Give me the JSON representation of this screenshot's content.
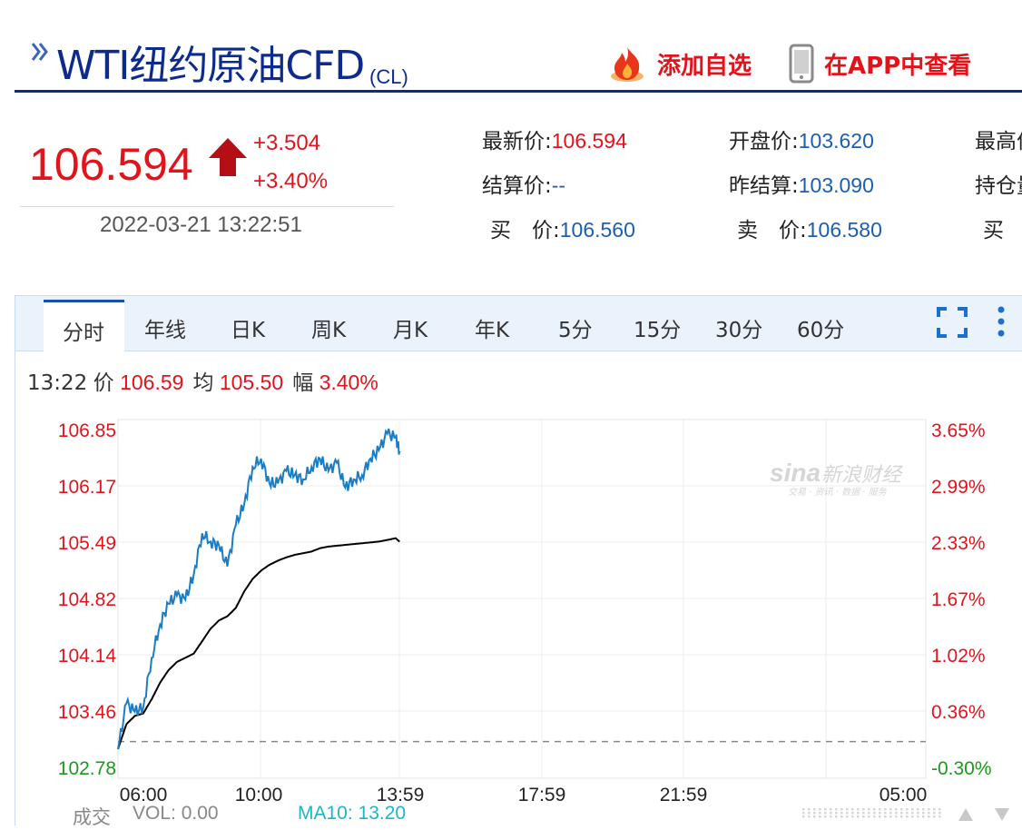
{
  "header": {
    "title": "WTI纽约原油CFD",
    "code": "(CL)",
    "add_favorite_label": "添加自选",
    "view_in_app_label": "在APP中查看"
  },
  "price": {
    "last": "106.594",
    "change": "+3.504",
    "change_pct": "+3.40%",
    "timestamp": "2022-03-21 13:22:51"
  },
  "quote": {
    "latest_label": "最新价:",
    "latest_value": "106.594",
    "open_label": "开盘价:",
    "open_value": "103.620",
    "high_label": "最高价",
    "settle_label": "结算价:",
    "settle_value": "--",
    "prev_settle_label": "昨结算:",
    "prev_settle_value": "103.090",
    "oi_label": "持仓量",
    "bid_label": "买　价:",
    "bid_value": "106.560",
    "ask_label": "卖　价:",
    "ask_value": "106.580",
    "bid_vol_label": "买　量"
  },
  "tabs": [
    "分时",
    "年线",
    "日K",
    "周K",
    "月K",
    "年K",
    "5分",
    "15分",
    "30分",
    "60分"
  ],
  "active_tab": "分时",
  "info": {
    "time": "13:22",
    "price_label": "价",
    "price_value": "106.59",
    "avg_label": "均",
    "avg_value": "105.50",
    "amp_label": "幅",
    "amp_value": "3.40%"
  },
  "watermark": {
    "brand": "sina",
    "name": "新浪财经",
    "sub": "交易 · 资讯 · 数据 · 服务"
  },
  "footer": {
    "volume_label": "成交",
    "vol_text": "VOL: 0.00",
    "ma_text": "MA10: 13.20"
  },
  "colors": {
    "up": "#e1141b",
    "down": "#1a9a1a",
    "price_line": "#1a7dc4",
    "avg_line": "#000000",
    "brand_blue": "#0d2b8c"
  },
  "chart_data": {
    "type": "line",
    "x_ticks": [
      "06:00",
      "10:00",
      "13:59",
      "17:59",
      "21:59",
      "05:00"
    ],
    "y_ticks_left": [
      "106.85",
      "106.17",
      "105.49",
      "104.82",
      "104.14",
      "103.46",
      "102.78"
    ],
    "y_ticks_right": [
      "3.65%",
      "2.99%",
      "2.33%",
      "1.67%",
      "1.02%",
      "0.36%",
      "-0.30%"
    ],
    "ylim": [
      102.78,
      106.85
    ],
    "reference_value": 103.09,
    "series": [
      {
        "x": [
          "05:00",
          "05:15",
          "05:30",
          "05:45",
          "06:00",
          "06:15",
          "06:30",
          "06:45",
          "07:00",
          "07:15",
          "07:30",
          "07:45",
          "08:00",
          "08:15",
          "08:30",
          "08:45",
          "09:00",
          "09:15",
          "09:30",
          "09:45",
          "10:00",
          "10:15",
          "10:30",
          "10:45",
          "11:00",
          "11:15",
          "11:30",
          "11:45",
          "12:00",
          "12:15",
          "12:30",
          "12:45",
          "13:00",
          "13:15",
          "13:22"
        ],
        "values": [
          103.0,
          103.55,
          103.45,
          103.5,
          104.1,
          104.5,
          104.75,
          104.85,
          104.8,
          105.1,
          105.6,
          105.5,
          105.45,
          105.2,
          105.7,
          105.95,
          106.4,
          106.5,
          106.2,
          106.2,
          106.35,
          106.3,
          106.25,
          106.4,
          106.5,
          106.35,
          106.45,
          106.15,
          106.25,
          106.3,
          106.5,
          106.6,
          106.8,
          106.75,
          106.59
        ]
      },
      {
        "x": [
          "05:00",
          "05:15",
          "05:30",
          "05:45",
          "06:00",
          "06:15",
          "06:30",
          "06:45",
          "07:00",
          "07:15",
          "07:30",
          "07:45",
          "08:00",
          "08:15",
          "08:30",
          "08:45",
          "09:00",
          "09:15",
          "09:30",
          "09:45",
          "10:00",
          "10:15",
          "10:30",
          "10:45",
          "11:00",
          "11:15",
          "11:30",
          "11:45",
          "12:00",
          "12:15",
          "12:30",
          "12:45",
          "13:00",
          "13:15",
          "13:22"
        ],
        "values": [
          103.0,
          103.3,
          103.4,
          103.43,
          103.6,
          103.8,
          103.95,
          104.05,
          104.1,
          104.15,
          104.3,
          104.45,
          104.55,
          104.6,
          104.7,
          104.9,
          105.05,
          105.15,
          105.22,
          105.27,
          105.31,
          105.34,
          105.36,
          105.38,
          105.42,
          105.44,
          105.45,
          105.46,
          105.47,
          105.48,
          105.49,
          105.5,
          105.52,
          105.54,
          105.5
        ]
      }
    ],
    "grid": true
  }
}
